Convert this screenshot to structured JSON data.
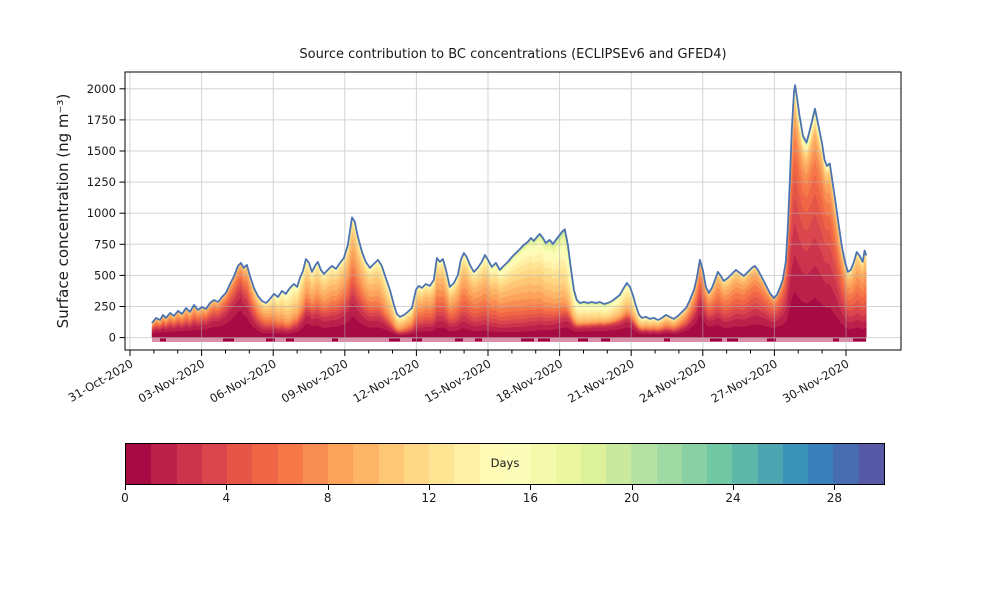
{
  "figure": {
    "background": "#ffffff",
    "text_color": "#1a1a1a"
  },
  "chart_data": {
    "type": "area",
    "stacked": true,
    "title": "Source contribution to BC concentrations (ECLIPSEv6 and GFED4)",
    "xlabel": "",
    "ylabel": "Surface concentration (ng m⁻³)",
    "grid": true,
    "gridline_color": "#b0b0b0",
    "axes_edge_color": "#000000",
    "envelope_line_color": "#4c72b0",
    "ylim": [
      -100,
      2135
    ],
    "y_ticks": [
      0,
      250,
      500,
      750,
      1000,
      1250,
      1500,
      1750,
      2000
    ],
    "x_tick_days": [
      0,
      3,
      6,
      9,
      12,
      15,
      18,
      21,
      24,
      27,
      30
    ],
    "x_tick_labels": [
      "31-Oct-2020",
      "03-Nov-2020",
      "06-Nov-2020",
      "09-Nov-2020",
      "12-Nov-2020",
      "15-Nov-2020",
      "18-Nov-2020",
      "21-Nov-2020",
      "24-Nov-2020",
      "27-Nov-2020",
      "30-Nov-2020"
    ],
    "x_unit_days_since": "31-Oct-2020",
    "colormap": {
      "name_hint": "spectral-like",
      "anchors": [
        "#9e0142",
        "#d53e4f",
        "#f46d43",
        "#fdae61",
        "#fee08b",
        "#ffffbf",
        "#e6f598",
        "#abdda4",
        "#66c2a5",
        "#3288bd",
        "#5e4fa2"
      ]
    },
    "colorbar": {
      "label": "Days",
      "range": [
        0,
        30
      ],
      "segments": 30,
      "ticks": [
        0,
        4,
        8,
        12,
        16,
        20,
        24,
        28
      ]
    },
    "baseline_strip": {
      "color": "#d5849f",
      "dash_color": "#9e0142"
    },
    "total_series": {
      "name": "total-surface-concentration",
      "points": [
        [
          0.92,
          117
        ],
        [
          1.09,
          158
        ],
        [
          1.26,
          141
        ],
        [
          1.38,
          182
        ],
        [
          1.51,
          158
        ],
        [
          1.68,
          198
        ],
        [
          1.84,
          174
        ],
        [
          2.01,
          214
        ],
        [
          2.18,
          190
        ],
        [
          2.35,
          238
        ],
        [
          2.51,
          206
        ],
        [
          2.68,
          262
        ],
        [
          2.85,
          222
        ],
        [
          3.02,
          246
        ],
        [
          3.18,
          230
        ],
        [
          3.35,
          278
        ],
        [
          3.52,
          302
        ],
        [
          3.69,
          286
        ],
        [
          3.85,
          326
        ],
        [
          4.02,
          359
        ],
        [
          4.19,
          431
        ],
        [
          4.36,
          495
        ],
        [
          4.52,
          576
        ],
        [
          4.65,
          600
        ],
        [
          4.77,
          560
        ],
        [
          4.9,
          584
        ],
        [
          5.03,
          495
        ],
        [
          5.19,
          399
        ],
        [
          5.36,
          334
        ],
        [
          5.53,
          294
        ],
        [
          5.7,
          278
        ],
        [
          5.86,
          310
        ],
        [
          6.03,
          351
        ],
        [
          6.2,
          326
        ],
        [
          6.37,
          375
        ],
        [
          6.53,
          351
        ],
        [
          6.7,
          399
        ],
        [
          6.87,
          431
        ],
        [
          7.0,
          407
        ],
        [
          7.12,
          479
        ],
        [
          7.25,
          536
        ],
        [
          7.37,
          632
        ],
        [
          7.5,
          600
        ],
        [
          7.62,
          528
        ],
        [
          7.75,
          576
        ],
        [
          7.87,
          608
        ],
        [
          8.0,
          544
        ],
        [
          8.13,
          512
        ],
        [
          8.29,
          544
        ],
        [
          8.46,
          576
        ],
        [
          8.63,
          552
        ],
        [
          8.8,
          600
        ],
        [
          8.96,
          640
        ],
        [
          9.13,
          745
        ],
        [
          9.3,
          966
        ],
        [
          9.42,
          930
        ],
        [
          9.55,
          809
        ],
        [
          9.72,
          688
        ],
        [
          9.88,
          608
        ],
        [
          10.05,
          560
        ],
        [
          10.22,
          592
        ],
        [
          10.39,
          624
        ],
        [
          10.55,
          576
        ],
        [
          10.72,
          479
        ],
        [
          10.89,
          383
        ],
        [
          11.06,
          262
        ],
        [
          11.18,
          190
        ],
        [
          11.31,
          166
        ],
        [
          11.48,
          182
        ],
        [
          11.64,
          206
        ],
        [
          11.81,
          238
        ],
        [
          11.98,
          383
        ],
        [
          12.1,
          415
        ],
        [
          12.23,
          399
        ],
        [
          12.4,
          431
        ],
        [
          12.56,
          415
        ],
        [
          12.73,
          463
        ],
        [
          12.86,
          640
        ],
        [
          12.98,
          608
        ],
        [
          13.11,
          632
        ],
        [
          13.24,
          544
        ],
        [
          13.4,
          407
        ],
        [
          13.57,
          439
        ],
        [
          13.74,
          503
        ],
        [
          13.86,
          624
        ],
        [
          13.99,
          680
        ],
        [
          14.11,
          648
        ],
        [
          14.24,
          584
        ],
        [
          14.41,
          528
        ],
        [
          14.57,
          560
        ],
        [
          14.74,
          608
        ],
        [
          14.87,
          664
        ],
        [
          15.0,
          624
        ],
        [
          15.16,
          568
        ],
        [
          15.33,
          600
        ],
        [
          15.5,
          544
        ],
        [
          15.66,
          576
        ],
        [
          15.83,
          608
        ],
        [
          16.0,
          648
        ],
        [
          16.17,
          680
        ],
        [
          16.34,
          712
        ],
        [
          16.5,
          745
        ],
        [
          16.67,
          769
        ],
        [
          16.8,
          801
        ],
        [
          16.92,
          777
        ],
        [
          17.05,
          809
        ],
        [
          17.17,
          833
        ],
        [
          17.3,
          801
        ],
        [
          17.42,
          761
        ],
        [
          17.59,
          785
        ],
        [
          17.72,
          753
        ],
        [
          17.84,
          785
        ],
        [
          17.97,
          817
        ],
        [
          18.1,
          850
        ],
        [
          18.22,
          870
        ],
        [
          18.35,
          745
        ],
        [
          18.47,
          560
        ],
        [
          18.6,
          383
        ],
        [
          18.72,
          302
        ],
        [
          18.85,
          278
        ],
        [
          19.02,
          286
        ],
        [
          19.19,
          278
        ],
        [
          19.35,
          286
        ],
        [
          19.52,
          278
        ],
        [
          19.69,
          286
        ],
        [
          19.86,
          270
        ],
        [
          20.02,
          278
        ],
        [
          20.19,
          294
        ],
        [
          20.36,
          318
        ],
        [
          20.52,
          342
        ],
        [
          20.69,
          399
        ],
        [
          20.82,
          439
        ],
        [
          20.95,
          407
        ],
        [
          21.07,
          342
        ],
        [
          21.2,
          254
        ],
        [
          21.33,
          182
        ],
        [
          21.45,
          158
        ],
        [
          21.62,
          166
        ],
        [
          21.79,
          150
        ],
        [
          21.95,
          158
        ],
        [
          22.12,
          141
        ],
        [
          22.29,
          158
        ],
        [
          22.46,
          182
        ],
        [
          22.62,
          166
        ],
        [
          22.79,
          150
        ],
        [
          22.96,
          174
        ],
        [
          23.13,
          206
        ],
        [
          23.3,
          238
        ],
        [
          23.46,
          302
        ],
        [
          23.63,
          383
        ],
        [
          23.75,
          479
        ],
        [
          23.88,
          624
        ],
        [
          24.0,
          544
        ],
        [
          24.13,
          407
        ],
        [
          24.25,
          359
        ],
        [
          24.38,
          399
        ],
        [
          24.51,
          463
        ],
        [
          24.63,
          528
        ],
        [
          24.76,
          495
        ],
        [
          24.88,
          455
        ],
        [
          25.05,
          479
        ],
        [
          25.22,
          512
        ],
        [
          25.39,
          544
        ],
        [
          25.55,
          520
        ],
        [
          25.72,
          495
        ],
        [
          25.89,
          528
        ],
        [
          26.06,
          560
        ],
        [
          26.18,
          576
        ],
        [
          26.31,
          544
        ],
        [
          26.47,
          487
        ],
        [
          26.64,
          423
        ],
        [
          26.81,
          359
        ],
        [
          26.98,
          318
        ],
        [
          27.1,
          342
        ],
        [
          27.23,
          399
        ],
        [
          27.35,
          463
        ],
        [
          27.48,
          608
        ],
        [
          27.56,
          865
        ],
        [
          27.65,
          1267
        ],
        [
          27.73,
          1669
        ],
        [
          27.82,
          1975
        ],
        [
          27.87,
          2030
        ],
        [
          27.94,
          1940
        ],
        [
          28.05,
          1790
        ],
        [
          28.2,
          1620
        ],
        [
          28.35,
          1570
        ],
        [
          28.5,
          1680
        ],
        [
          28.7,
          1840
        ],
        [
          28.85,
          1700
        ],
        [
          29.0,
          1560
        ],
        [
          29.1,
          1430
        ],
        [
          29.2,
          1380
        ],
        [
          29.32,
          1400
        ],
        [
          29.45,
          1230
        ],
        [
          29.57,
          1080
        ],
        [
          29.7,
          900
        ],
        [
          29.82,
          740
        ],
        [
          29.95,
          615
        ],
        [
          30.08,
          528
        ],
        [
          30.2,
          544
        ],
        [
          30.33,
          608
        ],
        [
          30.45,
          688
        ],
        [
          30.58,
          656
        ],
        [
          30.7,
          608
        ],
        [
          30.78,
          700
        ],
        [
          30.85,
          660
        ]
      ]
    },
    "layer_mix": [
      [
        0.9,
        1.6,
        0.18,
        7,
        2.5
      ],
      [
        2.5,
        1.6,
        0.22,
        7,
        2.5
      ],
      [
        4.0,
        1.6,
        0.15,
        6,
        2.5
      ],
      [
        4.65,
        1.3,
        0.12,
        6,
        2.5
      ],
      [
        5.5,
        2.2,
        0.35,
        8,
        3
      ],
      [
        6.7,
        2.5,
        0.55,
        11,
        3
      ],
      [
        7.4,
        1.6,
        0.3,
        9,
        3
      ],
      [
        8.3,
        2.2,
        0.35,
        9,
        3
      ],
      [
        9.3,
        1.9,
        0.3,
        8,
        3
      ],
      [
        10.3,
        2.2,
        0.38,
        9,
        3
      ],
      [
        11.2,
        1.8,
        0.45,
        10,
        3
      ],
      [
        12.3,
        2.2,
        0.4,
        8,
        3.5
      ],
      [
        13.3,
        2.0,
        0.38,
        8,
        3.5
      ],
      [
        14.3,
        2.6,
        0.45,
        8,
        3.5
      ],
      [
        15.5,
        3.0,
        0.5,
        9,
        4
      ],
      [
        16.5,
        3.0,
        0.55,
        10,
        4
      ],
      [
        17.5,
        2.6,
        0.5,
        11,
        4
      ],
      [
        18.2,
        1.9,
        0.45,
        12,
        4
      ],
      [
        18.8,
        1.4,
        0.3,
        12,
        3.5
      ],
      [
        20.0,
        1.4,
        0.25,
        12,
        3.5
      ],
      [
        21.5,
        1.6,
        0.3,
        10,
        3
      ],
      [
        23.0,
        1.4,
        0.28,
        8,
        3
      ],
      [
        23.9,
        1.2,
        0.2,
        6,
        2.5
      ],
      [
        25.0,
        1.8,
        0.35,
        7,
        3
      ],
      [
        26.2,
        1.8,
        0.3,
        6,
        3
      ],
      [
        27.1,
        1.5,
        0.25,
        5,
        2.5
      ],
      [
        27.9,
        4.5,
        0.1,
        5,
        2.5
      ],
      [
        28.7,
        4.5,
        0.12,
        5,
        2.5
      ],
      [
        29.6,
        3.5,
        0.22,
        6,
        3
      ],
      [
        30.3,
        3.0,
        0.4,
        7,
        3
      ],
      [
        30.85,
        3.0,
        0.45,
        7,
        3
      ]
    ]
  }
}
